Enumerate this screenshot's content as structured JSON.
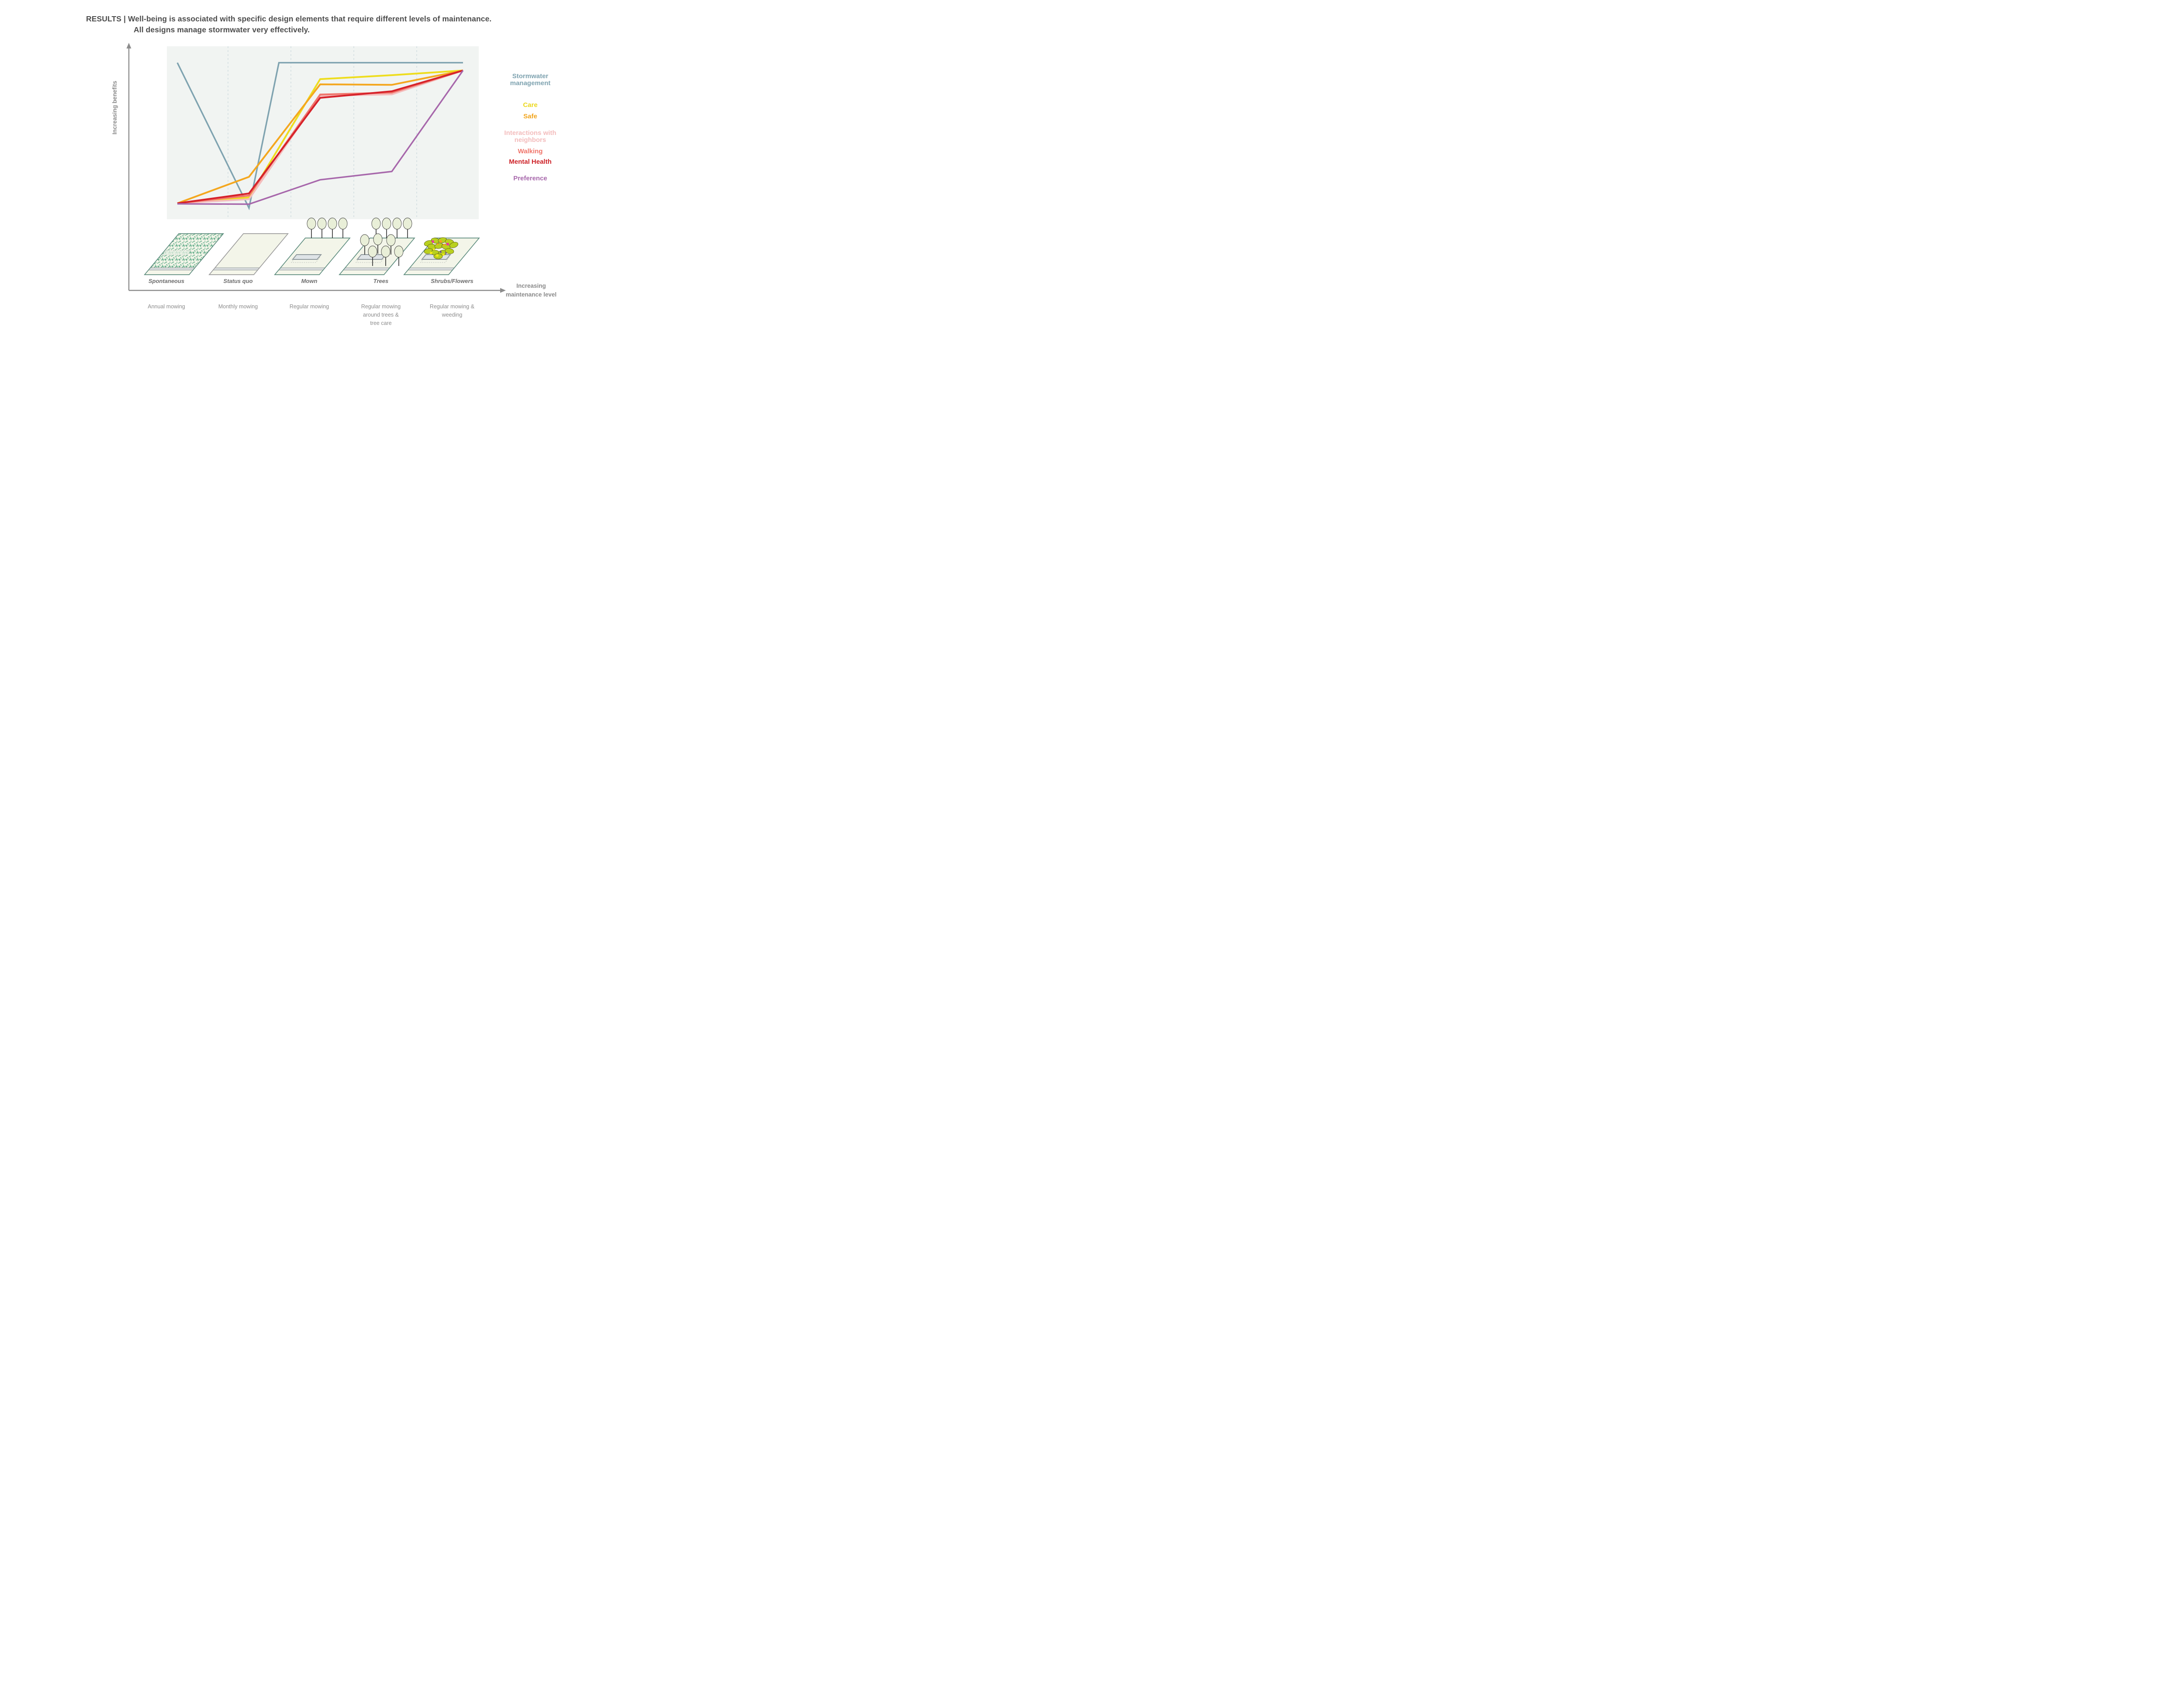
{
  "title": {
    "line1": "RESULTS | Well-being is associated with specific design elements that require different levels of maintenance.",
    "line2": "All designs manage stormwater very effectively."
  },
  "axes": {
    "y_label": "Increasing benefits",
    "x_label_line1": "Increasing",
    "x_label_line2": "maintenance level"
  },
  "legend": [
    {
      "id": "stormwater",
      "lines": [
        "Stormwater",
        "management"
      ],
      "color": "#7fa3b0"
    },
    {
      "id": "care",
      "lines": [
        "Care"
      ],
      "color": "#ecd81d"
    },
    {
      "id": "safe",
      "lines": [
        "Safe"
      ],
      "color": "#f2a51d"
    },
    {
      "id": "interactions",
      "lines": [
        "Interactions with",
        "neighbors"
      ],
      "color": "#f3bcbc"
    },
    {
      "id": "walking",
      "lines": [
        "Walking"
      ],
      "color": "#f0756b"
    },
    {
      "id": "mental",
      "lines": [
        "Mental Health"
      ],
      "color": "#cd2127"
    },
    {
      "id": "preference",
      "lines": [
        "Preference"
      ],
      "color": "#a767ab"
    }
  ],
  "chart_data": {
    "type": "line",
    "title": "Well-being benefits associated with lawn design vs maintenance level",
    "xlabel": "Increasing maintenance level",
    "ylabel": "Increasing benefits",
    "ylim": [
      0,
      100
    ],
    "grid": "vertical dashed gridlines between categories; no numeric ticks (qualitative axes)",
    "legend_position": "right",
    "x_categories": [
      "Spontaneous",
      "Status quo",
      "Mown",
      "Trees",
      "Shrubs/Flowers"
    ],
    "x_sub_labels": [
      "Annual mowing",
      "Monthly mowing",
      "Regular mowing",
      "Regular mowing around trees & tree care",
      "Regular mowing & weeding"
    ],
    "series": [
      {
        "name": "Stormwater management",
        "color": "#7fa3b0",
        "points": [
          [
            0,
            90.5
          ],
          [
            1,
            6.5
          ],
          [
            1.42,
            90.5
          ],
          [
            4,
            90.5
          ]
        ]
      },
      {
        "name": "Care",
        "color": "#eedd1e",
        "points": [
          [
            0,
            9.2
          ],
          [
            1,
            12.6
          ],
          [
            2,
            81.0
          ],
          [
            3,
            83.3
          ],
          [
            4,
            86.0
          ]
        ]
      },
      {
        "name": "Safe",
        "color": "#f4a71f",
        "points": [
          [
            0,
            9.2
          ],
          [
            1,
            24.5
          ],
          [
            2,
            78.0
          ],
          [
            3,
            77.7
          ],
          [
            4,
            86.0
          ]
        ]
      },
      {
        "name": "Interactions with neighbors",
        "color": "#f4bdbd",
        "points": [
          [
            0,
            9.2
          ],
          [
            1,
            11.6
          ],
          [
            2,
            71.4
          ],
          [
            3,
            72.2
          ],
          [
            4,
            86.0
          ]
        ]
      },
      {
        "name": "Walking",
        "color": "#f0756b",
        "points": [
          [
            0,
            9.2
          ],
          [
            1,
            13.7
          ],
          [
            2,
            72.1
          ],
          [
            3,
            73.2
          ],
          [
            4,
            86.0
          ]
        ]
      },
      {
        "name": "Mental Health",
        "color": "#d6222a",
        "points": [
          [
            0,
            9.2
          ],
          [
            1,
            14.9
          ],
          [
            2,
            70.2
          ],
          [
            3,
            74.0
          ],
          [
            4,
            86.0
          ]
        ]
      },
      {
        "name": "Preference",
        "color": "#a767ab",
        "points": [
          [
            0,
            8.9
          ],
          [
            1,
            8.7
          ],
          [
            2,
            22.8
          ],
          [
            3,
            27.6
          ],
          [
            4,
            86.0
          ]
        ]
      }
    ]
  },
  "designs": [
    {
      "name": "Spontaneous",
      "maintenance": [
        "Annual mowing"
      ],
      "icon": {
        "outline": "#5d8c7e",
        "texture": true,
        "ghost_pad": true,
        "trees_top": 0,
        "cluster": false,
        "pad": false,
        "shrubs": false,
        "tall": true
      }
    },
    {
      "name": "Status quo",
      "maintenance": [
        "Monthly mowing"
      ],
      "icon": {
        "outline": "#9b9b9b",
        "texture": false,
        "ghost_pad": false,
        "trees_top": 0,
        "cluster": false,
        "pad": false,
        "shrubs": false,
        "tall": true
      }
    },
    {
      "name": "Mown",
      "maintenance": [
        "Regular mowing"
      ],
      "icon": {
        "outline": "#5d8c7e",
        "texture": false,
        "ghost_pad": false,
        "trees_top": 4,
        "cluster": false,
        "pad": true,
        "shrubs": false,
        "tall": false
      }
    },
    {
      "name": "Trees",
      "maintenance": [
        "Regular mowing",
        "around trees &",
        "tree care"
      ],
      "icon": {
        "outline": "#5d8c7e",
        "texture": false,
        "ghost_pad": false,
        "trees_top": 4,
        "cluster": true,
        "pad": true,
        "shrubs": false,
        "tall": false
      }
    },
    {
      "name": "Shrubs/Flowers",
      "maintenance": [
        "Regular mowing &",
        "weeding"
      ],
      "icon": {
        "outline": "#5d8c7e",
        "texture": false,
        "ghost_pad": false,
        "trees_top": 0,
        "cluster": false,
        "pad": true,
        "shrubs": true,
        "tall": false
      }
    }
  ],
  "icon_colors": {
    "lawn_fill": "#f3f5e9",
    "curb_fill": "#f5f6ea",
    "sidewalk_fill": "#d8dbdd",
    "sidewalk_edge": "#979f9f",
    "grass_scribble": "#2e9367",
    "tree_canopy": "#e9efd8",
    "tree_outline": "#3c3c3c",
    "trunk": "#1a1a1a",
    "pad_fill": "#dfe4e7",
    "pad_edge": "#8f999d",
    "shrub": "#b9d01f",
    "shrub_edge": "#5a5a16",
    "flower_magenta": "#e83a9c",
    "flower_orange": "#f6a41f",
    "flower_yellow": "#f3ea15",
    "flower_purple": "#6f4fa0"
  },
  "plot_colors": {
    "plot_bg": "#f1f4f2",
    "gridline": "#bfd0d6",
    "axis": "#8c8c8c",
    "title_text": "#4d4d4d",
    "label_gray": "#8c8c8c",
    "design_label_gray": "#6e6e6e"
  }
}
